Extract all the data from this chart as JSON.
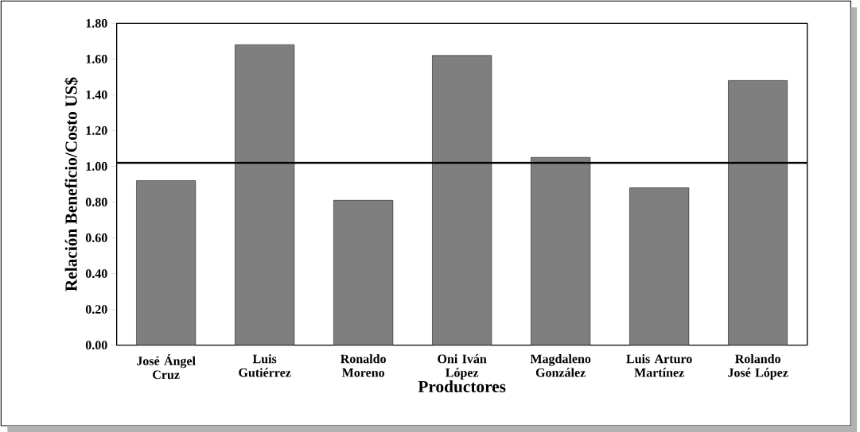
{
  "chart_data": {
    "type": "bar",
    "xlabel": "Productores",
    "ylabel": "Relación Beneficio/Costo US$",
    "categories": [
      "José Ángel Cruz",
      "Luis Gutiérrez",
      "Ronaldo Moreno",
      "Oni Iván López",
      "Magdaleno González",
      "Luis Arturo Martínez",
      "Rolando José López"
    ],
    "values": [
      0.92,
      1.68,
      0.81,
      1.62,
      1.05,
      0.88,
      1.48
    ],
    "color": "#7f7f7f",
    "ylim": [
      0,
      1.8
    ],
    "yticks": [
      {
        "value": 0,
        "label": "0.00"
      },
      {
        "value": 0.2,
        "label": "0.20"
      },
      {
        "value": 0.4,
        "label": "0.40"
      },
      {
        "value": 0.6,
        "label": "0.60"
      },
      {
        "value": 0.8,
        "label": "0.80"
      },
      {
        "value": 1.0,
        "label": "1.00"
      },
      {
        "value": 1.2,
        "label": "1.20"
      },
      {
        "value": 1.4,
        "label": "1.40"
      },
      {
        "value": 1.6,
        "label": "1.60"
      },
      {
        "value": 1.8,
        "label": "1.80"
      }
    ],
    "ref_lines": [
      {
        "axis": "y",
        "value": 1.02,
        "color": "#000000"
      }
    ]
  }
}
